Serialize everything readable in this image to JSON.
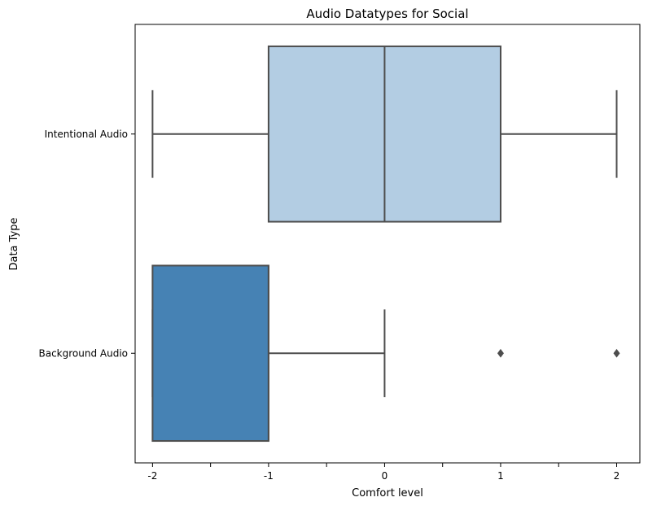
{
  "chart_data": {
    "type": "box",
    "orientation": "horizontal",
    "title": "Audio Datatypes for Social",
    "xlabel": "Comfort level",
    "ylabel": "Data Type",
    "xlim": [
      -2.15,
      2.2
    ],
    "x_ticks": [
      -2,
      -1.5,
      -1,
      -0.5,
      0,
      0.5,
      1,
      1.5,
      2
    ],
    "x_tick_labels": [
      "-2",
      "",
      "-1",
      "",
      "0",
      "",
      "1",
      "",
      "2"
    ],
    "grid": false,
    "legend": "none",
    "categories": [
      "Intentional Audio",
      "Background Audio"
    ],
    "boxes": [
      {
        "category": "Intentional Audio",
        "whisker_low": -2,
        "q1": -1,
        "median": 0,
        "q3": 1,
        "whisker_high": 2,
        "outliers": [],
        "color": "#b3cde3"
      },
      {
        "category": "Background Audio",
        "whisker_low": -2,
        "q1": -2,
        "median": -1,
        "q3": -1,
        "whisker_high": 0,
        "outliers": [
          1,
          2
        ],
        "color": "#4682b4"
      }
    ],
    "line_color": "#4d4d4d"
  }
}
